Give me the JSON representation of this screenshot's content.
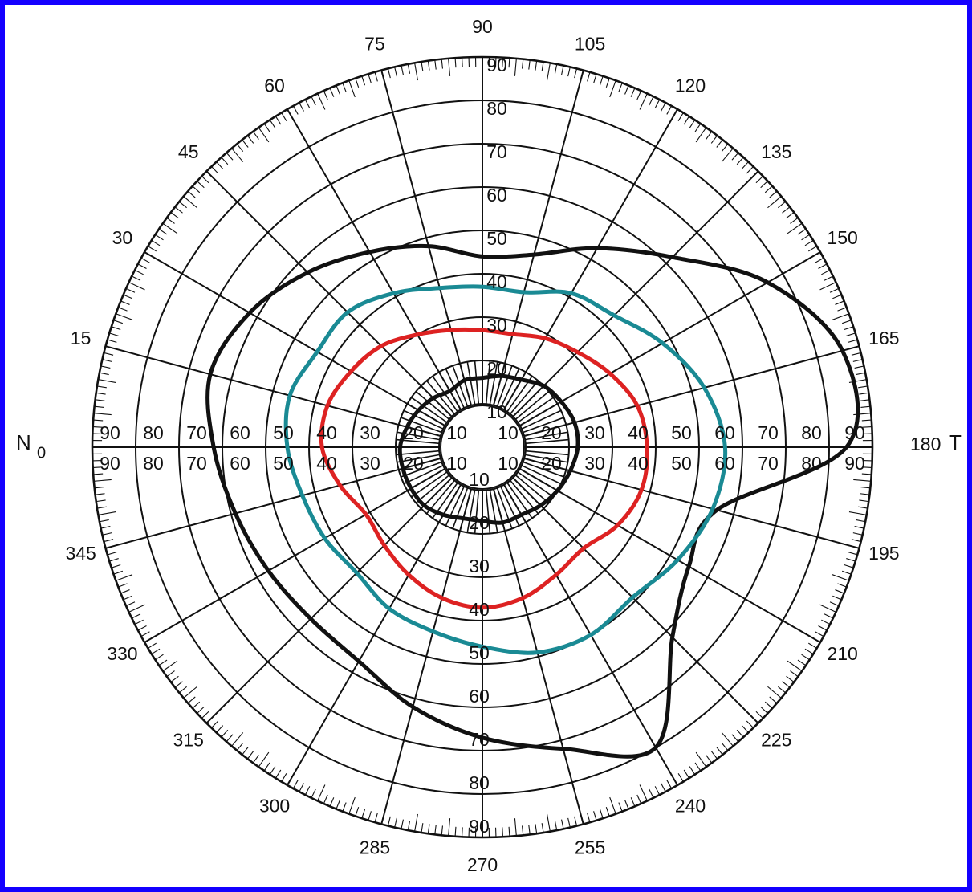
{
  "chart_data": {
    "type": "polar-isopter",
    "title": "",
    "meridian_labels": [
      "0",
      "15",
      "30",
      "45",
      "60",
      "75",
      "90",
      "105",
      "120",
      "135",
      "150",
      "165",
      "180",
      "195",
      "210",
      "225",
      "240",
      "255",
      "270",
      "285",
      "300",
      "315",
      "330",
      "345"
    ],
    "eccentricity_labels_vertical": [
      "10",
      "20",
      "30",
      "40",
      "50",
      "60",
      "70",
      "80",
      "90"
    ],
    "eccentricity_labels_horizontal": [
      "10",
      "20",
      "30",
      "40",
      "50",
      "60",
      "70",
      "80",
      "90"
    ],
    "nasal_label": "N",
    "nasal_angle_label": "0",
    "temporal_label": "T",
    "temporal_angle_label": "180",
    "angular_range": [
      0,
      360
    ],
    "radial_range": [
      0,
      90
    ],
    "grid": true,
    "series": [
      {
        "color": "#111111",
        "points": [
          [
            0,
            62
          ],
          [
            15,
            65
          ],
          [
            30,
            62
          ],
          [
            45,
            57
          ],
          [
            60,
            52
          ],
          [
            75,
            48
          ],
          [
            90,
            44
          ],
          [
            105,
            46
          ],
          [
            120,
            53
          ],
          [
            135,
            62
          ],
          [
            150,
            76
          ],
          [
            165,
            86
          ],
          [
            180,
            84
          ],
          [
            195,
            56
          ],
          [
            210,
            55
          ],
          [
            225,
            62
          ],
          [
            240,
            80
          ],
          [
            255,
            72
          ],
          [
            270,
            67
          ],
          [
            285,
            62
          ],
          [
            300,
            57
          ],
          [
            315,
            56
          ],
          [
            330,
            57
          ],
          [
            345,
            59
          ]
        ]
      },
      {
        "color": "#1a8a94",
        "points": [
          [
            0,
            45
          ],
          [
            15,
            46
          ],
          [
            30,
            44
          ],
          [
            45,
            44
          ],
          [
            60,
            41
          ],
          [
            75,
            38
          ],
          [
            90,
            37
          ],
          [
            105,
            37
          ],
          [
            120,
            41
          ],
          [
            135,
            43
          ],
          [
            150,
            48
          ],
          [
            165,
            53
          ],
          [
            180,
            56
          ],
          [
            195,
            55
          ],
          [
            210,
            52
          ],
          [
            225,
            49
          ],
          [
            240,
            50
          ],
          [
            255,
            49
          ],
          [
            270,
            46
          ],
          [
            285,
            44
          ],
          [
            300,
            43
          ],
          [
            315,
            41
          ],
          [
            330,
            42
          ],
          [
            345,
            43
          ]
        ]
      },
      {
        "color": "#dd2222",
        "points": [
          [
            0,
            37
          ],
          [
            15,
            37
          ],
          [
            30,
            35
          ],
          [
            45,
            33
          ],
          [
            60,
            30
          ],
          [
            75,
            28
          ],
          [
            90,
            27
          ],
          [
            105,
            27
          ],
          [
            120,
            29
          ],
          [
            135,
            31
          ],
          [
            150,
            34
          ],
          [
            165,
            37
          ],
          [
            180,
            38
          ],
          [
            195,
            38
          ],
          [
            210,
            36
          ],
          [
            225,
            33
          ],
          [
            240,
            34
          ],
          [
            255,
            36
          ],
          [
            270,
            37
          ],
          [
            285,
            36
          ],
          [
            300,
            34
          ],
          [
            315,
            32
          ],
          [
            330,
            31
          ],
          [
            345,
            34
          ]
        ]
      },
      {
        "color": "#111111",
        "points": [
          [
            0,
            19
          ],
          [
            15,
            18
          ],
          [
            30,
            17
          ],
          [
            45,
            16
          ],
          [
            60,
            15
          ],
          [
            75,
            16
          ],
          [
            90,
            16
          ],
          [
            105,
            17
          ],
          [
            120,
            18
          ],
          [
            135,
            20
          ],
          [
            150,
            21
          ],
          [
            165,
            22
          ],
          [
            180,
            22
          ],
          [
            195,
            21
          ],
          [
            210,
            20
          ],
          [
            225,
            19
          ],
          [
            240,
            18
          ],
          [
            255,
            18
          ],
          [
            270,
            17
          ],
          [
            285,
            17
          ],
          [
            300,
            18
          ],
          [
            315,
            19
          ],
          [
            330,
            19
          ],
          [
            345,
            19
          ]
        ]
      }
    ]
  }
}
